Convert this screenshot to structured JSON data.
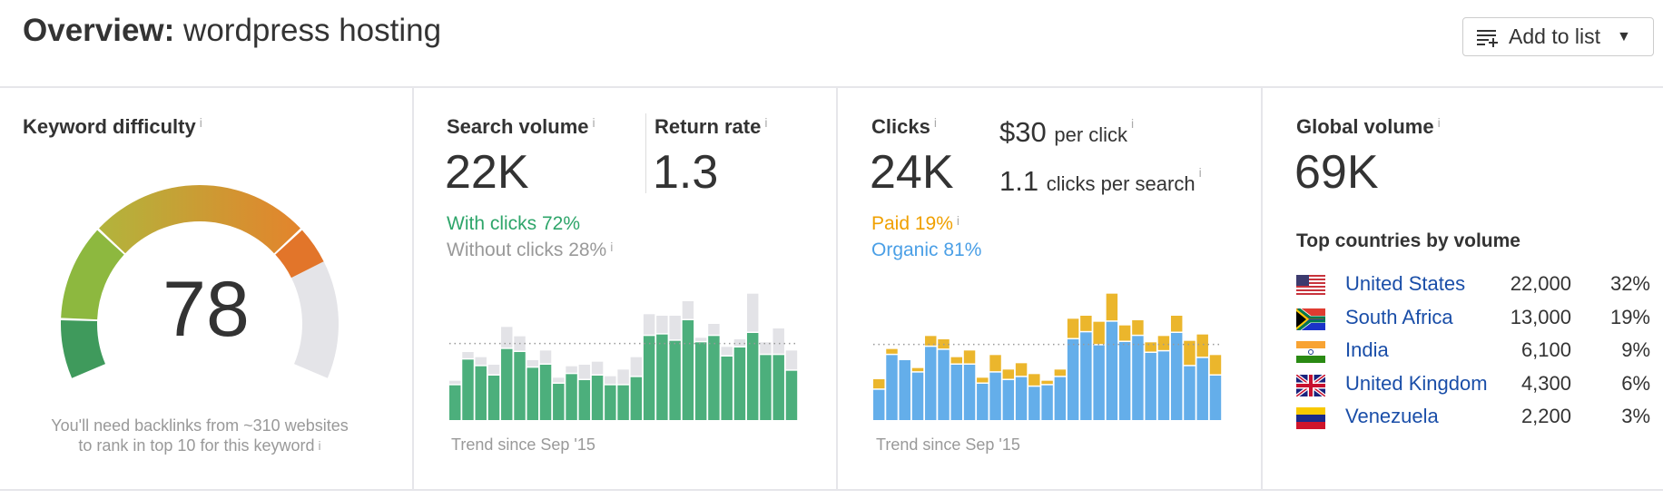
{
  "header": {
    "title_bold": "Overview:",
    "title_keyword": "wordpress hosting",
    "add_to_list": "Add to list"
  },
  "difficulty": {
    "label": "Keyword difficulty",
    "value": "78",
    "score": 78,
    "note_line1": "You'll need backlinks from ~310 websites",
    "note_line2": "to rank in top 10 for this keyword"
  },
  "search_volume": {
    "label": "Search volume",
    "value": "22K",
    "return_label": "Return rate",
    "return_value": "1.3",
    "with_clicks": "With clicks 72%",
    "without_clicks": "Without clicks 28%",
    "trend": "Trend since Sep '15"
  },
  "clicks": {
    "label": "Clicks",
    "value": "24K",
    "cpc": "$30",
    "cpc_suffix": "per click",
    "cps": "1.1",
    "cps_suffix": "clicks per search",
    "paid": "Paid 19%",
    "organic": "Organic 81%",
    "trend": "Trend since Sep '15"
  },
  "global": {
    "label": "Global volume",
    "value": "69K",
    "countries_title": "Top countries by volume",
    "countries": [
      {
        "flag": "us-flag",
        "name": "United States",
        "volume": "22,000",
        "pct": "32%"
      },
      {
        "flag": "za-flag",
        "name": "South Africa",
        "volume": "13,000",
        "pct": "19%"
      },
      {
        "flag": "in-flag",
        "name": "India",
        "volume": "6,100",
        "pct": "9%"
      },
      {
        "flag": "gb-flag",
        "name": "United Kingdom",
        "volume": "4,300",
        "pct": "6%"
      },
      {
        "flag": "ve-flag",
        "name": "Venezuela",
        "volume": "2,200",
        "pct": "3%"
      }
    ]
  },
  "colors": {
    "green": "#4caf7c",
    "grey": "#e3e3e7",
    "blue": "#64aeea",
    "orange": "#ebb62c",
    "green_text": "#2ea56a",
    "paid_text": "#f0a000",
    "organic_text": "#4a9fe6",
    "link": "#1a4ea8"
  },
  "chart_data": [
    {
      "type": "bar",
      "stacked": true,
      "xlabel": "Trend since Sep '15",
      "ylim": [
        0,
        420
      ],
      "average": 253,
      "series": [
        {
          "values": [
            115,
            200,
            178,
            147,
            235,
            225,
            173,
            183,
            120,
            152,
            132,
            147,
            115,
            115,
            142,
            278,
            283,
            262,
            330,
            257,
            278,
            210,
            240,
            288,
            215,
            215,
            163
          ]
        },
        {
          "values": [
            15,
            25,
            30,
            36,
            73,
            52,
            25,
            47,
            20,
            26,
            51,
            46,
            30,
            52,
            66,
            72,
            62,
            83,
            63,
            15,
            40,
            32,
            27,
            130,
            42,
            88,
            67
          ]
        }
      ]
    },
    {
      "type": "bar",
      "stacked": true,
      "xlabel": "Trend since Sep '15",
      "ylim": [
        0,
        420
      ],
      "average": 250,
      "series": [
        {
          "values": [
            100,
            215,
            198,
            157,
            242,
            232,
            183,
            183,
            120,
            157,
            132,
            142,
            110,
            115,
            142,
            267,
            290,
            247,
            325,
            258,
            278,
            222,
            227,
            288,
            178,
            205,
            147
          ]
        },
        {
          "values": [
            35,
            20,
            0,
            15,
            36,
            35,
            25,
            47,
            20,
            58,
            35,
            46,
            42,
            15,
            25,
            68,
            55,
            78,
            93,
            55,
            52,
            35,
            51,
            57,
            84,
            78,
            68
          ]
        }
      ]
    }
  ]
}
